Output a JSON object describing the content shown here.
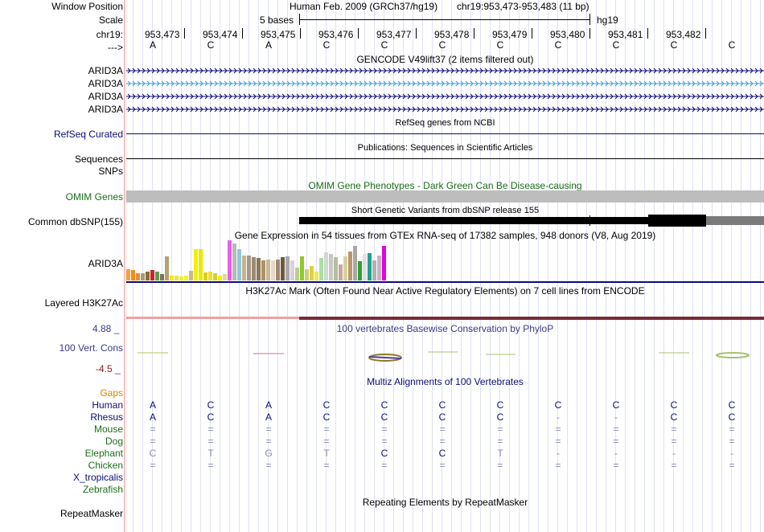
{
  "ruler": {
    "position_label": "Window Position",
    "scale_label": "Scale",
    "chrom_label": "chr19:",
    "arrow_label": "--->",
    "assembly": "Human Feb. 2009 (GRCh37/hg19)",
    "position": "chr19:953,473-953,483 (11 bp)",
    "scale_text": "5 bases",
    "db": "hg19",
    "coords": [
      "953,473",
      "953,474",
      "953,475",
      "953,476",
      "953,477",
      "953,478",
      "953,479",
      "953,480",
      "953,481",
      "953,482"
    ],
    "bases": [
      "A",
      "C",
      "A",
      "C",
      "C",
      "C",
      "C",
      "C",
      "C",
      "C",
      "C"
    ]
  },
  "tracks": {
    "gencode": {
      "title": "GENCODE V49lift37 (2 items filtered out)",
      "items": [
        "ARID3A",
        "ARID3A",
        "ARID3A",
        "ARID3A"
      ],
      "colors": [
        "#0c0c78",
        "#3aa0d8",
        "#0c0c78",
        "#0c0c78"
      ]
    },
    "refseq": {
      "label": "RefSeq Curated",
      "title": "RefSeq genes from NCBI"
    },
    "publications": {
      "label": "Sequences",
      "title": "Publications: Sequences in Scientific Articles"
    },
    "snps": {
      "label": "SNPs"
    },
    "omim": {
      "label": "OMIM Genes",
      "title": "OMIM Gene Phenotypes - Dark Green Can Be Disease-causing"
    },
    "dbsnp": {
      "label": "Common dbSNP(155)",
      "title": "Short Genetic Variants from dbSNP release 155"
    },
    "gtex": {
      "label": "ARID3A",
      "title": "Gene Expression in 54 tissues from GTEx RNA-seq of 17382 samples, 948 donors (V8, Aug 2019)",
      "bar_values": [
        0.28,
        0.26,
        0.18,
        0.18,
        0.22,
        0.26,
        0.22,
        0.16,
        0.6,
        0.12,
        0.12,
        0.1,
        0.12,
        0.24,
        0.78,
        0.78,
        0.2,
        0.22,
        0.18,
        0.12,
        0.16,
        1.0,
        0.92,
        0.78,
        0.62,
        0.62,
        0.58,
        0.55,
        0.5,
        0.52,
        0.5,
        0.52,
        0.58,
        0.6,
        0.5,
        0.32,
        0.6,
        0.28,
        0.35,
        0.22,
        0.55,
        0.7,
        0.66,
        0.58,
        0.4,
        0.6,
        0.72,
        0.85,
        0.48,
        0.65,
        0.68,
        0.5,
        0.62,
        0.85
      ],
      "bar_colors": [
        "#f4a340",
        "#f28a20",
        "#d8923a",
        "#a0a070",
        "#8f6a3a",
        "#c92626",
        "#5e9b52",
        "#7a7a50",
        "#b8a070",
        "#f4e430",
        "#e8e838",
        "#f0f020",
        "#f0f030",
        "#c8b890",
        "#f0f000",
        "#e8e800",
        "#d8d020",
        "#f0e020",
        "#d0d040",
        "#f0f000",
        "#e0d8a0",
        "#e860e8",
        "#b8b8b8",
        "#8fc8d8",
        "#c8b090",
        "#a89888",
        "#9a8a70",
        "#8a7a58",
        "#b0906a",
        "#c8b898",
        "#e8d8c8",
        "#a08870",
        "#70583a",
        "#a8a8a8",
        "#d8d0e0",
        "#b8d088",
        "#90c830",
        "#c8d080",
        "#e0d040",
        "#e8e860",
        "#a8e0a0",
        "#d0d8d0",
        "#c8c8c8",
        "#b0c0a0",
        "#c8a898",
        "#d8d0a0",
        "#b89868",
        "#a8a8a8",
        "#30a030",
        "#e0e0e0",
        "#20a090",
        "#b0b0b0",
        "#d0b0c0",
        "#e000e0"
      ]
    },
    "h3k27ac": {
      "label": "Layered H3K27Ac",
      "title": "H3K27Ac Mark (Often Found Near Active Regulatory Elements) on 7 cell lines from ENCODE"
    },
    "phylop": {
      "label": "100 Vert. Cons",
      "title": "100 vertebrates Basewise Conservation by PhyloP",
      "max": "4.88 _",
      "min": "-4.5 _"
    },
    "multiz": {
      "title": "Multiz Alignments of 100 Vertebrates",
      "species": [
        {
          "name": "Gaps",
          "color": "#d08a00",
          "seq": [
            "",
            "",
            "",
            "",
            "",
            "",
            "",
            "",
            "",
            "",
            ""
          ]
        },
        {
          "name": "Human",
          "color": "#0c0c78",
          "seq": [
            "A",
            "C",
            "A",
            "C",
            "C",
            "C",
            "C",
            "C",
            "C",
            "C",
            "C"
          ]
        },
        {
          "name": "Rhesus",
          "color": "#0c0c78",
          "seq": [
            "A",
            "C",
            "A",
            "C",
            "C",
            "C",
            "C",
            "-",
            "-",
            "C",
            "C"
          ]
        },
        {
          "name": "Mouse",
          "color": "#1a6e1a",
          "seq": [
            "=",
            "=",
            "=",
            "=",
            "=",
            "=",
            "=",
            "=",
            "=",
            "=",
            "="
          ]
        },
        {
          "name": "Dog",
          "color": "#1a6e1a",
          "seq": [
            "=",
            "=",
            "=",
            "=",
            "=",
            "=",
            "=",
            "=",
            "=",
            "=",
            "="
          ]
        },
        {
          "name": "Elephant",
          "color": "#1a6e1a",
          "seq": [
            "C",
            "T",
            "G",
            "T",
            "C",
            "C",
            "T",
            "-",
            "-",
            "-",
            "-"
          ]
        },
        {
          "name": "Chicken",
          "color": "#1a6e1a",
          "seq": [
            "=",
            "=",
            "=",
            "=",
            "=",
            "=",
            "=",
            "=",
            "=",
            "=",
            "="
          ]
        },
        {
          "name": "X_tropicalis",
          "color": "#0c0c78",
          "seq": [
            "",
            "",
            "",
            "",
            "",
            "",
            "",
            "",
            "",
            "",
            ""
          ]
        },
        {
          "name": "Zebrafish",
          "color": "#1a6e1a",
          "seq": [
            "",
            "",
            "",
            "",
            "",
            "",
            "",
            "",
            "",
            "",
            ""
          ]
        }
      ]
    },
    "repeatmasker": {
      "label": "RepeatMasker",
      "title": "Repeating Elements by RepeatMasker"
    }
  }
}
